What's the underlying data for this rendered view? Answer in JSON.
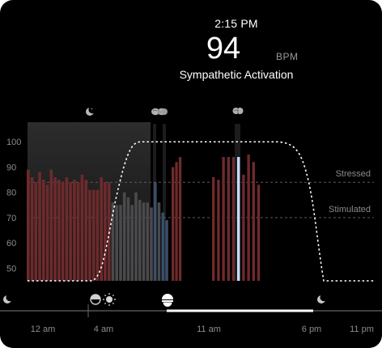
{
  "header": {
    "time": "2:15 PM",
    "value": "94",
    "unit": "BPM",
    "state": "Sympathetic Activation"
  },
  "chart_data": {
    "type": "bar",
    "y_axis": {
      "ticks": [
        50,
        60,
        70,
        80,
        90,
        100
      ],
      "range": [
        45,
        102
      ]
    },
    "x_axis": {
      "tick_labels": [
        "12 am",
        "4 am",
        "11 am",
        "6 pm",
        "11 pm"
      ]
    },
    "reference_lines": [
      {
        "name": "Stressed",
        "value": 84
      },
      {
        "name": "Stimulated",
        "value": 70
      }
    ],
    "activation_curve": {
      "min": 45,
      "max": 100
    },
    "bars": [
      {
        "v": 89,
        "c": "red"
      },
      {
        "v": 86,
        "c": "red"
      },
      {
        "v": 84,
        "c": "red"
      },
      {
        "v": 88,
        "c": "red"
      },
      {
        "v": 85,
        "c": "red"
      },
      {
        "v": 83,
        "c": "red"
      },
      {
        "v": 89,
        "c": "red"
      },
      {
        "v": 86,
        "c": "red"
      },
      {
        "v": 85,
        "c": "red"
      },
      {
        "v": 84,
        "c": "red"
      },
      {
        "v": 86,
        "c": "red"
      },
      {
        "v": 84,
        "c": "red"
      },
      {
        "v": 85,
        "c": "red"
      },
      {
        "v": 84,
        "c": "red"
      },
      {
        "v": 87,
        "c": "red"
      },
      {
        "v": 85,
        "c": "red"
      },
      {
        "v": 81,
        "c": "red"
      },
      {
        "v": 81,
        "c": "red"
      },
      {
        "v": 81,
        "c": "red"
      },
      {
        "v": 86,
        "c": "red"
      },
      {
        "v": 84,
        "c": "red"
      },
      {
        "v": 84,
        "c": "red"
      },
      {
        "v": 76,
        "c": "grey"
      },
      {
        "v": 75,
        "c": "grey"
      },
      {
        "v": 75,
        "c": "grey"
      },
      {
        "v": 80,
        "c": "grey"
      },
      {
        "v": 78,
        "c": "grey"
      },
      {
        "v": 75,
        "c": "grey"
      },
      {
        "v": 80,
        "c": "grey"
      },
      {
        "v": 77,
        "c": "grey"
      },
      {
        "v": 76,
        "c": "grey"
      },
      {
        "v": 76,
        "c": "grey"
      },
      {
        "v": 74,
        "c": "grey"
      },
      {
        "v": 84,
        "c": "blue"
      },
      {
        "v": 76,
        "c": "grey"
      },
      {
        "v": 72,
        "c": "blue"
      },
      {
        "v": 69,
        "c": "blue"
      },
      {
        "v": 90,
        "c": "red"
      },
      {
        "v": 92,
        "c": "red"
      },
      {
        "v": 94,
        "c": "red"
      },
      {
        "v": 86,
        "c": "red"
      },
      {
        "v": 85,
        "c": "red"
      },
      {
        "v": 94,
        "c": "red"
      },
      {
        "v": 94,
        "c": "red"
      },
      {
        "v": 94,
        "c": "red"
      },
      {
        "v": 94,
        "c": "highlight"
      },
      {
        "v": 87,
        "c": "red"
      },
      {
        "v": 95,
        "c": "red"
      },
      {
        "v": 92,
        "c": "red"
      },
      {
        "v": 83,
        "c": "red"
      }
    ],
    "colors": {
      "red": "#6e2a2c",
      "grey": "#4a4a4c",
      "blue": "#3a4e68",
      "highlight": "#c8dcf8",
      "axis": "#8c8c8c"
    }
  },
  "icons": [
    "moon-icon",
    "brain-icon",
    "brain-icon",
    "brain-icon",
    "moon-icon",
    "sunrise-icon",
    "sun-icon",
    "sunset-icon",
    "moon-icon"
  ]
}
